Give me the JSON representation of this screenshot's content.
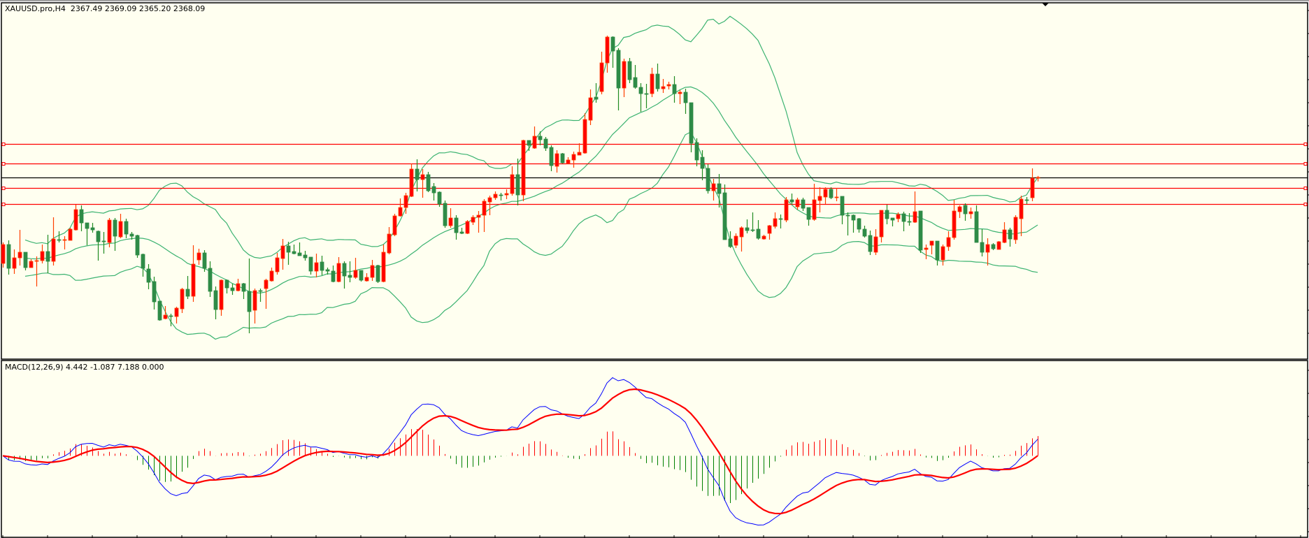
{
  "window": {
    "symbol_header": "XAUUSD.pro,H4  2367.49 2369.09 2365.20 2368.09",
    "indicator_header": "MACD(12,26,9) 4.442 -1.087 7.188 0.000"
  },
  "colors": {
    "background": "#fffff0",
    "bull_body": "#ff0000",
    "bull_wick": "#ff4000",
    "bear_body": "#2e8b47",
    "bear_wick": "#228b22",
    "bollinger": "#3cb371",
    "level_line": "#ff0000",
    "bid_line": "#000000",
    "macd_main": "#0000ff",
    "macd_signal": "#ff0000",
    "hist_positive": "#ff0000",
    "hist_negative": "#008000"
  },
  "chart_data": [
    {
      "type": "candlestick",
      "symbol": "XAUUSD.pro",
      "timeframe": "H4",
      "ylim": [
        2238.5,
        2495
      ],
      "indicators": [
        "bollinger-bands"
      ],
      "horizontal_levels": [
        2392,
        2378,
        2360.5,
        2349
      ],
      "bid_level": 2368.09,
      "candles": [
        [
          2306.5,
          2321.5,
          2303.5,
          2320
        ],
        [
          2320,
          2323,
          2298.5,
          2303
        ],
        [
          2303,
          2316.5,
          2299,
          2310.5
        ],
        [
          2310.5,
          2330.5,
          2305,
          2314.5
        ],
        [
          2314.5,
          2314.5,
          2301.5,
          2303.5
        ],
        [
          2303.5,
          2309.5,
          2303.5,
          2308
        ],
        [
          2308,
          2311.5,
          2290,
          2308.5
        ],
        [
          2308.5,
          2320,
          2306.5,
          2315
        ],
        [
          2315,
          2327,
          2299.5,
          2308
        ],
        [
          2308,
          2339.5,
          2305,
          2324
        ],
        [
          2323.5,
          2329.5,
          2321.5,
          2323
        ],
        [
          2323,
          2326,
          2316.5,
          2323.5
        ],
        [
          2323,
          2332,
          2323,
          2331
        ],
        [
          2330.5,
          2348.5,
          2330,
          2345
        ],
        [
          2345,
          2348,
          2329.5,
          2335.5
        ],
        [
          2335.5,
          2335.5,
          2319.5,
          2331.5
        ],
        [
          2332,
          2335.5,
          2328.5,
          2330.5
        ],
        [
          2329.5,
          2330,
          2308.5,
          2322
        ],
        [
          2322.5,
          2329,
          2313.5,
          2322
        ],
        [
          2321.5,
          2339,
          2318,
          2337.5
        ],
        [
          2337.5,
          2339,
          2315.5,
          2326
        ],
        [
          2325.5,
          2342,
          2324.5,
          2336.5
        ],
        [
          2336.5,
          2338.5,
          2324.5,
          2327.5
        ],
        [
          2327.5,
          2329,
          2323.5,
          2326
        ],
        [
          2326.5,
          2327,
          2310.5,
          2312.5
        ],
        [
          2313,
          2313.5,
          2297,
          2303
        ],
        [
          2302.5,
          2306,
          2288,
          2293
        ],
        [
          2293.5,
          2297,
          2273.5,
          2279
        ],
        [
          2279.5,
          2279.5,
          2265.5,
          2266
        ],
        [
          2267,
          2276,
          2266.5,
          2269.5
        ],
        [
          2269,
          2270.5,
          2261.5,
          2268.5
        ],
        [
          2268.5,
          2275.5,
          2263.5,
          2274.5
        ],
        [
          2274,
          2289,
          2271,
          2288
        ],
        [
          2288,
          2297.5,
          2281,
          2283
        ],
        [
          2283,
          2319.5,
          2279,
          2306
        ],
        [
          2309,
          2317,
          2305.5,
          2314
        ],
        [
          2314,
          2316,
          2300.5,
          2303
        ],
        [
          2303,
          2308,
          2282.5,
          2286.5
        ],
        [
          2287,
          2290,
          2266.5,
          2273.5
        ],
        [
          2273.5,
          2295,
          2269,
          2294.5
        ],
        [
          2294.5,
          2295,
          2285,
          2289
        ],
        [
          2289,
          2292,
          2284,
          2287
        ],
        [
          2287,
          2295.5,
          2286.5,
          2292
        ],
        [
          2292,
          2292.5,
          2281,
          2286.5
        ],
        [
          2286.5,
          2310,
          2256.5,
          2272
        ],
        [
          2273,
          2288.5,
          2263.5,
          2287
        ],
        [
          2287,
          2288.5,
          2279,
          2286.5
        ],
        [
          2288.5,
          2295.5,
          2274,
          2294.5
        ],
        [
          2294,
          2303.5,
          2293.5,
          2301
        ],
        [
          2300.5,
          2314,
          2298.5,
          2310.5
        ],
        [
          2310,
          2324,
          2302,
          2319
        ],
        [
          2319,
          2322,
          2305.5,
          2314.5
        ],
        [
          2315,
          2320,
          2313,
          2313.5
        ],
        [
          2314,
          2321.5,
          2312,
          2312
        ],
        [
          2312.5,
          2315.5,
          2308.5,
          2310.5
        ],
        [
          2311,
          2311,
          2298.5,
          2301
        ],
        [
          2301,
          2313.5,
          2296.5,
          2307
        ],
        [
          2307.5,
          2312,
          2298,
          2301.5
        ],
        [
          2302,
          2303.5,
          2298.5,
          2301
        ],
        [
          2301,
          2305,
          2293,
          2293.5
        ],
        [
          2293.5,
          2311,
          2293,
          2306.5
        ],
        [
          2306.5,
          2308,
          2288.5,
          2297.5
        ],
        [
          2298,
          2308,
          2293,
          2296.5
        ],
        [
          2296.5,
          2310.5,
          2295.5,
          2301.5
        ],
        [
          2301.5,
          2301.5,
          2293.5,
          2294.5
        ],
        [
          2294,
          2299.5,
          2293.5,
          2296.5
        ],
        [
          2296.5,
          2309,
          2294,
          2305
        ],
        [
          2305,
          2305.5,
          2292.5,
          2293.5
        ],
        [
          2293.5,
          2320,
          2293,
          2314.5
        ],
        [
          2314,
          2332.5,
          2313,
          2327.5
        ],
        [
          2327,
          2342,
          2326,
          2340.5
        ],
        [
          2340.5,
          2353,
          2340,
          2346.5
        ],
        [
          2346.5,
          2357,
          2342,
          2355
        ],
        [
          2354.5,
          2378,
          2354,
          2374
        ],
        [
          2374,
          2381,
          2358,
          2366.5
        ],
        [
          2366.5,
          2374,
          2353.5,
          2370
        ],
        [
          2370,
          2372,
          2357.5,
          2358.5
        ],
        [
          2361.5,
          2364,
          2351.5,
          2357
        ],
        [
          2357.5,
          2358,
          2347,
          2349
        ],
        [
          2349.5,
          2351.5,
          2332,
          2333.5
        ],
        [
          2333.5,
          2346,
          2332,
          2339
        ],
        [
          2339,
          2341,
          2323.5,
          2328.5
        ],
        [
          2329,
          2332,
          2327.5,
          2328
        ],
        [
          2328,
          2337.5,
          2327.5,
          2336.5
        ],
        [
          2336,
          2341,
          2334,
          2339.5
        ],
        [
          2339.5,
          2344,
          2328.5,
          2341
        ],
        [
          2341,
          2352.5,
          2329,
          2351
        ],
        [
          2350.5,
          2355,
          2341,
          2353.5
        ],
        [
          2353.5,
          2358,
          2352,
          2356
        ],
        [
          2355.5,
          2357,
          2351.5,
          2355
        ],
        [
          2355.5,
          2359.5,
          2352.5,
          2356.5
        ],
        [
          2356.5,
          2376,
          2355,
          2370
        ],
        [
          2370,
          2381.5,
          2348,
          2355.5
        ],
        [
          2355.5,
          2395,
          2351,
          2394.5
        ],
        [
          2394.5,
          2394.5,
          2387,
          2391
        ],
        [
          2389,
          2404.5,
          2388.5,
          2397.5
        ],
        [
          2397.5,
          2401,
          2391,
          2395
        ],
        [
          2395.5,
          2397,
          2387,
          2389
        ],
        [
          2389.5,
          2391,
          2372.5,
          2376.5
        ],
        [
          2376,
          2387.5,
          2371.5,
          2385
        ],
        [
          2385,
          2385.5,
          2378,
          2378.5
        ],
        [
          2378,
          2382.5,
          2378,
          2380.5
        ],
        [
          2380.5,
          2386.5,
          2375,
          2384.5
        ],
        [
          2384,
          2392.5,
          2384,
          2386
        ],
        [
          2385.5,
          2414,
          2385,
          2409.5
        ],
        [
          2409,
          2431,
          2405.5,
          2425
        ],
        [
          2425.5,
          2435.5,
          2421.5,
          2424
        ],
        [
          2429.5,
          2458,
          2427.5,
          2450
        ],
        [
          2450,
          2469.5,
          2443,
          2468.5
        ],
        [
          2468.5,
          2469,
          2446.5,
          2458.5
        ],
        [
          2459,
          2460.5,
          2416,
          2432
        ],
        [
          2432,
          2453,
          2425.5,
          2451
        ],
        [
          2451,
          2453.5,
          2435.5,
          2438
        ],
        [
          2439.5,
          2448.5,
          2431.5,
          2432.5
        ],
        [
          2432.5,
          2435.5,
          2415,
          2428
        ],
        [
          2428,
          2435,
          2417.5,
          2427.5
        ],
        [
          2428,
          2446.5,
          2425.5,
          2442
        ],
        [
          2442,
          2449.5,
          2429.5,
          2431.5
        ],
        [
          2431.5,
          2438.5,
          2428.5,
          2433
        ],
        [
          2433.5,
          2436.5,
          2431,
          2434.5
        ],
        [
          2434.5,
          2440.5,
          2421.5,
          2428
        ],
        [
          2428,
          2430.5,
          2420.5,
          2429
        ],
        [
          2429,
          2431.5,
          2413.5,
          2421.5
        ],
        [
          2421.5,
          2421.5,
          2386,
          2392.5
        ],
        [
          2393,
          2396,
          2376,
          2380.5
        ],
        [
          2382.5,
          2387.5,
          2366,
          2374.5
        ],
        [
          2374.5,
          2377.5,
          2356.5,
          2358.5
        ],
        [
          2358.5,
          2367,
          2351.5,
          2363.5
        ],
        [
          2363.5,
          2370.5,
          2346.5,
          2356.5
        ],
        [
          2357,
          2363,
          2323.5,
          2323.5
        ],
        [
          2324,
          2329.5,
          2317.5,
          2318.5
        ],
        [
          2319.5,
          2328,
          2317.5,
          2326
        ],
        [
          2325.5,
          2333,
          2315,
          2332
        ],
        [
          2332,
          2338,
          2328,
          2330
        ],
        [
          2330.5,
          2343,
          2329,
          2330
        ],
        [
          2331,
          2337.5,
          2323.5,
          2324.5
        ],
        [
          2324,
          2327,
          2323.5,
          2326
        ],
        [
          2328,
          2334,
          2323.5,
          2333.5
        ],
        [
          2333,
          2343,
          2331.5,
          2338.5
        ],
        [
          2338.5,
          2341.5,
          2331.5,
          2338
        ],
        [
          2337.5,
          2354,
          2336,
          2352
        ],
        [
          2352,
          2356.5,
          2348.5,
          2350.5
        ],
        [
          2347,
          2353.5,
          2345,
          2352
        ],
        [
          2352,
          2353.5,
          2344,
          2346
        ],
        [
          2346.5,
          2346.5,
          2333.5,
          2338
        ],
        [
          2338,
          2363.5,
          2337,
          2352
        ],
        [
          2351.5,
          2361,
          2343,
          2354.5
        ],
        [
          2354,
          2361,
          2349,
          2359.5
        ],
        [
          2359.5,
          2361,
          2352.5,
          2353.5
        ],
        [
          2353.5,
          2360.5,
          2351,
          2354
        ],
        [
          2354.5,
          2354.5,
          2334.5,
          2341
        ],
        [
          2341,
          2343,
          2326.5,
          2340.5
        ],
        [
          2341,
          2341.5,
          2328.5,
          2337.5
        ],
        [
          2338.5,
          2339,
          2328.5,
          2331
        ],
        [
          2331,
          2333.5,
          2325,
          2326
        ],
        [
          2326.5,
          2330,
          2312.5,
          2315
        ],
        [
          2314.5,
          2331,
          2312.5,
          2325.5
        ],
        [
          2325.5,
          2344.5,
          2321.5,
          2344.5
        ],
        [
          2344.5,
          2348.5,
          2334.5,
          2338.5
        ],
        [
          2339,
          2339,
          2333,
          2337.5
        ],
        [
          2338.5,
          2343,
          2336,
          2341.5
        ],
        [
          2342,
          2343.5,
          2329.5,
          2336.5
        ],
        [
          2336.5,
          2342.5,
          2333.5,
          2336
        ],
        [
          2336,
          2358,
          2335.5,
          2343.5
        ],
        [
          2344,
          2344,
          2314,
          2316
        ],
        [
          2316.5,
          2320,
          2309.5,
          2317.5
        ],
        [
          2319.5,
          2322.5,
          2313,
          2322.5
        ],
        [
          2322.5,
          2322.5,
          2305,
          2309
        ],
        [
          2309,
          2320,
          2305,
          2318.5
        ],
        [
          2318.5,
          2329.5,
          2315.5,
          2325
        ],
        [
          2325,
          2352,
          2323.5,
          2344
        ],
        [
          2343.5,
          2348,
          2339,
          2347
        ],
        [
          2348,
          2349.5,
          2337,
          2342
        ],
        [
          2342,
          2346.5,
          2338.5,
          2343.5
        ],
        [
          2343.5,
          2348,
          2321.5,
          2321.5
        ],
        [
          2321.5,
          2331,
          2311.5,
          2314.5
        ],
        [
          2314.5,
          2324.5,
          2305,
          2320
        ],
        [
          2320,
          2321,
          2316,
          2317
        ],
        [
          2316.5,
          2322.5,
          2316.5,
          2322
        ],
        [
          2321.5,
          2336,
          2321,
          2330.5
        ],
        [
          2330.5,
          2332,
          2318.5,
          2324
        ],
        [
          2323.5,
          2341,
          2320.5,
          2339.5
        ],
        [
          2338.5,
          2355,
          2326,
          2352.5
        ],
        [
          2352,
          2354,
          2349,
          2351.5
        ],
        [
          2353.5,
          2374.5,
          2351,
          2367.5
        ],
        [
          2367.49,
          2369.09,
          2365.2,
          2368.09
        ]
      ]
    },
    {
      "type": "line",
      "indicator": "MACD",
      "params": [
        12,
        26,
        9
      ],
      "readout": [
        4.442,
        -1.087,
        7.188,
        0.0
      ],
      "series_colors": [
        "#0000ff",
        "#ff0000"
      ],
      "histogram": true
    }
  ]
}
